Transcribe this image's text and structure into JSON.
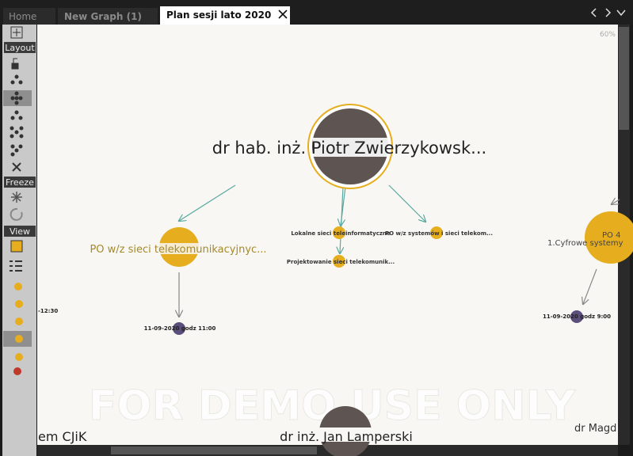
{
  "tabs": [
    "Home",
    "New Graph (1)",
    "Plan sesji lato 2020"
  ],
  "toolbar": {
    "sections": [
      "Layout",
      "Freeze",
      "View"
    ]
  },
  "zoom": "60%",
  "watermark": "FOR DEMO USE ONLY",
  "nodes": [
    {
      "label": "dr hab. inż. Piotr Zwierzykowsk..."
    },
    {
      "label": "PO w/z sieci telekomunikacyjnyc..."
    },
    {
      "label": "Lokalne sieci teleinformatyczne"
    },
    {
      "label": "PO w/z systemów i sieci telekom..."
    },
    {
      "label": "Projektowanie sieci telekomunik..."
    },
    {
      "label": "11-09-2020 godz 11:00"
    },
    {
      "label": "-12:30"
    },
    {
      "label": "PO 4",
      "sublabel": "1.Cyfrowe systemy"
    },
    {
      "label": "11-09-2020 godz 9:00"
    },
    {
      "label": "em CJiK"
    },
    {
      "label": "dr inż. Jan Lamperski"
    },
    {
      "label": "dr Magd"
    }
  ]
}
